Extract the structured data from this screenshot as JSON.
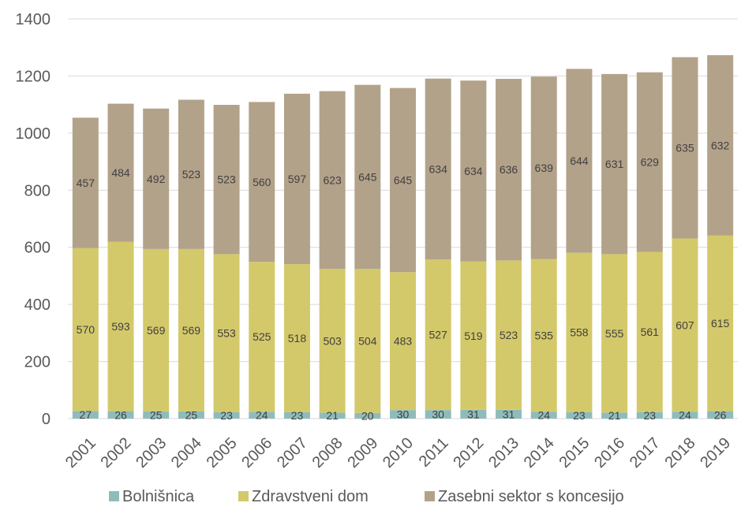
{
  "chart_data": {
    "type": "bar",
    "stacked": true,
    "categories": [
      "2001",
      "2002",
      "2003",
      "2004",
      "2005",
      "2006",
      "2007",
      "2008",
      "2009",
      "2010",
      "2011",
      "2012",
      "2013",
      "2014",
      "2015",
      "2016",
      "2017",
      "2018",
      "2019"
    ],
    "series": [
      {
        "name": "Bolnišnica",
        "color": "#8fbcbb",
        "values": [
          27,
          26,
          25,
          25,
          23,
          24,
          23,
          21,
          20,
          30,
          30,
          31,
          31,
          24,
          23,
          21,
          23,
          24,
          26
        ]
      },
      {
        "name": "Zdravstveni dom",
        "color": "#d4c96a",
        "values": [
          570,
          593,
          569,
          569,
          553,
          525,
          518,
          503,
          504,
          483,
          527,
          519,
          523,
          535,
          558,
          555,
          561,
          607,
          615
        ]
      },
      {
        "name": "Zasebni sektor s koncesijo",
        "color": "#b3a28a",
        "values": [
          457,
          484,
          492,
          523,
          523,
          560,
          597,
          623,
          645,
          645,
          634,
          634,
          636,
          639,
          644,
          631,
          629,
          635,
          632
        ]
      }
    ],
    "ylim": [
      0,
      1400
    ],
    "yticks": [
      0,
      200,
      400,
      600,
      800,
      1000,
      1200,
      1400
    ],
    "grid": true,
    "legend_position": "bottom",
    "data_labels": true
  }
}
